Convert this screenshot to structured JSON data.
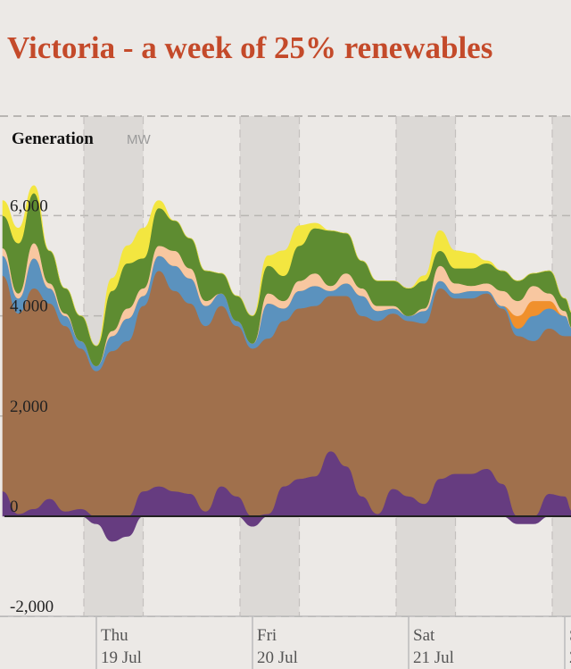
{
  "page": {
    "title": "Victoria - a week of 25% renewables"
  },
  "chart_data": {
    "type": "area",
    "stacked": true,
    "panel_label": "Generation",
    "unit": "MW",
    "ylim": [
      -2000,
      7000
    ],
    "y_ticks": [
      {
        "value": -2000,
        "label": "-2,000"
      },
      {
        "value": 0,
        "label": "0"
      },
      {
        "value": 2000,
        "label": "2,000"
      },
      {
        "value": 4000,
        "label": "4,000"
      },
      {
        "value": 6000,
        "label": "6,000"
      }
    ],
    "x_range_days": [
      0,
      3.65
    ],
    "x_ticks": [
      {
        "day": 0.6,
        "line1": "Thu",
        "line2": "19 Jul"
      },
      {
        "day": 1.6,
        "line1": "Fri",
        "line2": "20 Jul"
      },
      {
        "day": 2.6,
        "line1": "Sat",
        "line2": "21 Jul"
      },
      {
        "day": 3.6,
        "line1": "S",
        "line2": "2"
      }
    ],
    "night_bands": [
      [
        0.52,
        0.9
      ],
      [
        1.52,
        1.9
      ],
      [
        2.52,
        2.9
      ],
      [
        3.52,
        3.65
      ]
    ],
    "grid": "dashed horizontal and vertical",
    "x": [
      0,
      0.1,
      0.2,
      0.3,
      0.4,
      0.5,
      0.6,
      0.7,
      0.8,
      0.9,
      1,
      1.1,
      1.2,
      1.3,
      1.4,
      1.5,
      1.6,
      1.7,
      1.8,
      1.9,
      2,
      2.1,
      2.2,
      2.3,
      2.4,
      2.5,
      2.6,
      2.7,
      2.8,
      2.9,
      3,
      3.1,
      3.2,
      3.3,
      3.4,
      3.5,
      3.6,
      3.65
    ],
    "series": [
      {
        "color": "#663c80",
        "values": [
          500,
          50,
          150,
          350,
          100,
          150,
          -150,
          -500,
          -400,
          500,
          600,
          500,
          450,
          100,
          600,
          400,
          -200,
          50,
          600,
          750,
          800,
          1300,
          1000,
          400,
          50,
          550,
          400,
          250,
          750,
          850,
          850,
          950,
          650,
          -150,
          -150,
          450,
          400,
          100
        ]
      },
      {
        "color": "#a0704c",
        "values": [
          4300,
          4000,
          4400,
          3900,
          3700,
          3200,
          2900,
          3300,
          3500,
          3700,
          4300,
          4000,
          3800,
          3700,
          3600,
          3400,
          3350,
          3500,
          3300,
          3400,
          3400,
          3100,
          3400,
          3600,
          3850,
          3500,
          3500,
          3600,
          3800,
          3500,
          3500,
          3500,
          3500,
          3600,
          3500,
          3300,
          3200,
          3500
        ]
      },
      {
        "color": "#5b92be",
        "values": [
          400,
          300,
          600,
          300,
          200,
          150,
          100,
          300,
          450,
          200,
          300,
          500,
          500,
          400,
          250,
          100,
          100,
          700,
          250,
          350,
          400,
          100,
          250,
          400,
          200,
          100,
          100,
          250,
          150,
          100,
          150,
          50,
          50,
          150,
          500,
          400,
          400,
          150
        ]
      },
      {
        "color": "#f0902c",
        "values": [
          0,
          0,
          0,
          0,
          0,
          0,
          0,
          0,
          0,
          0,
          0,
          0,
          0,
          0,
          0,
          0,
          0,
          0,
          0,
          0,
          0,
          0,
          0,
          0,
          0,
          0,
          0,
          0,
          0,
          0,
          0,
          0,
          0,
          250,
          300,
          150,
          0,
          0
        ]
      },
      {
        "color": "#f8c7a0",
        "values": [
          150,
          100,
          300,
          100,
          50,
          0,
          0,
          100,
          200,
          150,
          200,
          300,
          200,
          100,
          0,
          0,
          0,
          200,
          150,
          200,
          250,
          100,
          200,
          150,
          100,
          50,
          0,
          50,
          300,
          200,
          100,
          150,
          300,
          300,
          300,
          150,
          100,
          0
        ]
      },
      {
        "color": "#5e8c31",
        "values": [
          650,
          1000,
          1000,
          650,
          500,
          500,
          400,
          800,
          900,
          600,
          750,
          600,
          600,
          600,
          400,
          500,
          550,
          550,
          500,
          700,
          900,
          1100,
          800,
          550,
          500,
          500,
          550,
          550,
          300,
          300,
          350,
          400,
          400,
          400,
          250,
          450,
          250,
          300
        ]
      },
      {
        "color": "#f3e640",
        "values": [
          300,
          300,
          150,
          0,
          0,
          0,
          0,
          250,
          350,
          600,
          150,
          0,
          0,
          0,
          0,
          0,
          0,
          200,
          500,
          400,
          100,
          0,
          0,
          0,
          0,
          0,
          0,
          100,
          400,
          350,
          300,
          50,
          0,
          0,
          0,
          0,
          0,
          0
        ]
      }
    ]
  }
}
